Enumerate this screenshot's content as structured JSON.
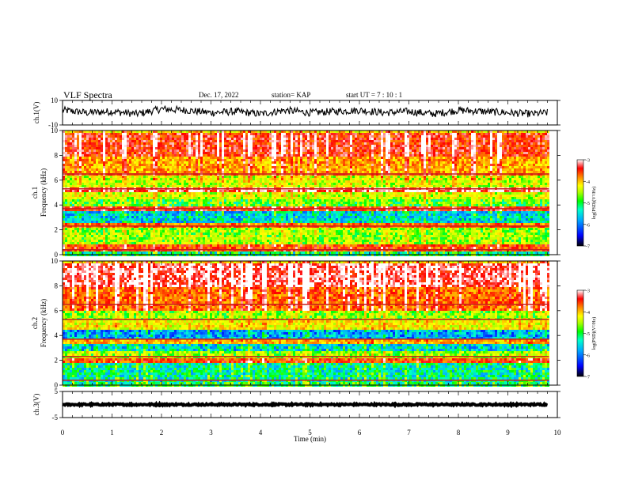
{
  "header": {
    "title": "VLF Spectra",
    "date": "Dec. 17, 2022",
    "station": "station= KAP",
    "start": "start  UT =   7 : 10 : 1"
  },
  "colorbar": {
    "label": "log(PSD)(V²/Hz)",
    "ticks": [
      "-3",
      "-4",
      "-5",
      "-6",
      "-7"
    ],
    "colors": [
      "#000080",
      "#0000ff",
      "#00aaff",
      "#00ffcc",
      "#00ff00",
      "#aaff00",
      "#ffff00",
      "#ff8800",
      "#ff0000",
      "#ffffff"
    ]
  },
  "chart_data": [
    {
      "type": "line",
      "panel": "ch1-waveform",
      "ylabel": "ch.1(V)",
      "ylim": [
        -10,
        10
      ],
      "yticks": [
        "10",
        "-10"
      ],
      "x": [
        0.0,
        0.5,
        1.0,
        1.5,
        2.0,
        2.5,
        3.0,
        3.5,
        4.0,
        4.5,
        5.0,
        5.5,
        6.0,
        6.5,
        7.0,
        7.5,
        8.0,
        8.5,
        9.0,
        9.5,
        9.8
      ],
      "values": [
        2,
        0,
        1,
        -1,
        3,
        2,
        0,
        1,
        -1,
        2,
        0,
        1,
        2,
        0,
        1,
        -1,
        2,
        1,
        0,
        -1,
        0
      ]
    },
    {
      "type": "heatmap",
      "panel": "ch1-spectrogram",
      "ylabel_top": "ch.1",
      "ylabel": "Frequency  (kHz)",
      "ylim": [
        0,
        10
      ],
      "yticks": [
        "0",
        "2",
        "4",
        "6",
        "8",
        "10"
      ],
      "bands_kHz": [
        {
          "from": 0.0,
          "to": 0.4,
          "level": -5.5
        },
        {
          "from": 0.4,
          "to": 1.0,
          "level": -3.8
        },
        {
          "from": 1.0,
          "to": 2.2,
          "level": -5.0
        },
        {
          "from": 2.2,
          "to": 2.6,
          "level": -4.0
        },
        {
          "from": 2.6,
          "to": 3.6,
          "level": -5.8
        },
        {
          "from": 3.6,
          "to": 4.0,
          "level": -3.6
        },
        {
          "from": 4.0,
          "to": 4.6,
          "level": -5.2
        },
        {
          "from": 4.6,
          "to": 5.2,
          "level": -4.8
        },
        {
          "from": 5.2,
          "to": 5.6,
          "level": -3.3
        },
        {
          "from": 5.6,
          "to": 6.4,
          "level": -4.8
        },
        {
          "from": 6.4,
          "to": 6.6,
          "level": -3.8
        },
        {
          "from": 6.6,
          "to": 8.0,
          "level": -4.2
        },
        {
          "from": 8.0,
          "to": 10.0,
          "level": -3.6
        }
      ]
    },
    {
      "type": "heatmap",
      "panel": "ch2-spectrogram",
      "ylabel_top": "ch.2",
      "ylabel": "Frequency  (kHz)",
      "ylim": [
        0,
        10
      ],
      "yticks": [
        "0",
        "2",
        "4",
        "6",
        "8",
        "10"
      ],
      "bands_kHz": [
        {
          "from": 0.0,
          "to": 0.4,
          "level": -5.4
        },
        {
          "from": 0.4,
          "to": 1.8,
          "level": -5.6
        },
        {
          "from": 1.8,
          "to": 2.2,
          "level": -3.8
        },
        {
          "from": 2.2,
          "to": 2.8,
          "level": -5.0
        },
        {
          "from": 2.8,
          "to": 3.4,
          "level": -5.8
        },
        {
          "from": 3.4,
          "to": 3.8,
          "level": -4.3
        },
        {
          "from": 3.8,
          "to": 4.6,
          "level": -6.0
        },
        {
          "from": 4.6,
          "to": 5.4,
          "level": -4.6
        },
        {
          "from": 5.4,
          "to": 6.0,
          "level": -5.0
        },
        {
          "from": 6.0,
          "to": 8.0,
          "level": -3.9
        },
        {
          "from": 8.0,
          "to": 10.0,
          "level": -3.3
        }
      ]
    },
    {
      "type": "line",
      "panel": "ch3-waveform",
      "ylabel": "ch.3(V)",
      "ylim": [
        -5,
        5
      ],
      "yticks": [
        "5",
        "-5"
      ],
      "x": [
        0.0,
        9.8
      ],
      "values": [
        0,
        0
      ]
    }
  ],
  "xaxis": {
    "label": "Time  (min)",
    "xlim": [
      0,
      10
    ],
    "ticks": [
      "0",
      "1",
      "2",
      "3",
      "4",
      "5",
      "6",
      "7",
      "8",
      "9",
      "10"
    ]
  }
}
